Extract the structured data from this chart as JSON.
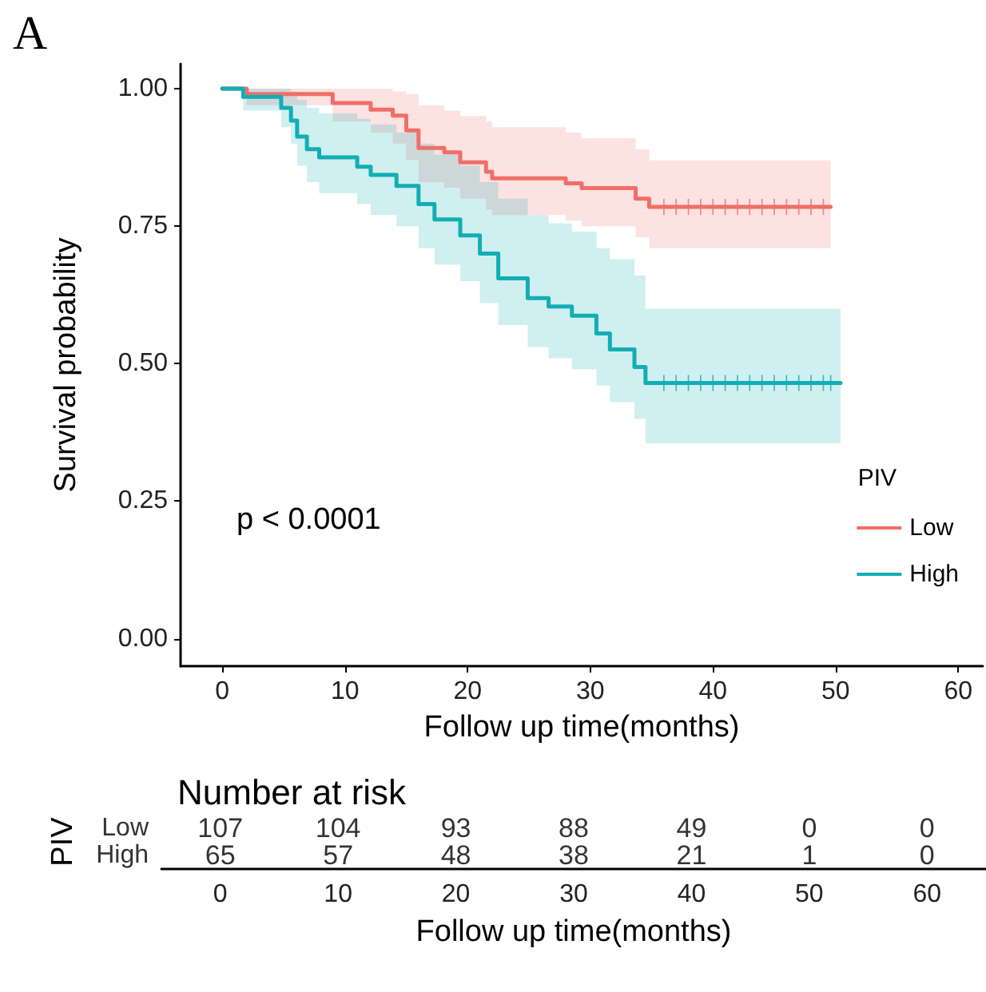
{
  "chart_data": [
    {
      "type": "step",
      "xlabel": "Follow up time(months)",
      "ylabel": "Survival probability",
      "legend_title": "PIV",
      "legend": "right",
      "grid": false,
      "annotations": [
        "A",
        "p < 0.0001"
      ],
      "xlim": [
        -3.4,
        62
      ],
      "ylim": [
        -0.05,
        1.045
      ],
      "xticks": [
        0,
        10,
        20,
        30,
        40,
        50,
        60
      ],
      "yticks": [
        {
          "value": 0,
          "label": "0.00"
        },
        {
          "value": 0.25,
          "label": "0.25"
        },
        {
          "value": 0.5,
          "label": "0.50"
        },
        {
          "value": 0.75,
          "label": "0.75"
        },
        {
          "value": 1,
          "label": "1.00"
        }
      ],
      "series": [
        {
          "name": "Low",
          "color": "#ef6f68",
          "x": [
            0,
            2,
            9,
            12.1,
            13.9,
            15,
            16,
            18.1,
            19.4,
            21.5,
            22,
            28,
            29.3,
            33.7,
            34.8,
            49.6
          ],
          "values": [
            1,
            0.99,
            0.974,
            0.962,
            0.951,
            0.924,
            0.892,
            0.884,
            0.866,
            0.849,
            0.837,
            0.828,
            0.819,
            0.8,
            0.785,
            0.785
          ],
          "upper": [
            1,
            1,
            1,
            1,
            0.995,
            0.99,
            0.97,
            0.96,
            0.95,
            0.94,
            0.93,
            0.92,
            0.91,
            0.89,
            0.87,
            0.87
          ],
          "lower": [
            1,
            0.97,
            0.94,
            0.92,
            0.9,
            0.87,
            0.83,
            0.82,
            0.8,
            0.78,
            0.77,
            0.76,
            0.75,
            0.73,
            0.71,
            0.71
          ]
        },
        {
          "name": "High",
          "color": "#12aeb4",
          "x": [
            0,
            1.7,
            4.8,
            5.6,
            6.1,
            6.9,
            7.9,
            11,
            12.1,
            14.2,
            16,
            17.3,
            19.4,
            21,
            22.5,
            24.9,
            26.6,
            28.5,
            30.5,
            31.6,
            33.6,
            34.5,
            50.4
          ],
          "values": [
            1,
            0.985,
            0.965,
            0.942,
            0.913,
            0.89,
            0.875,
            0.858,
            0.843,
            0.823,
            0.79,
            0.762,
            0.733,
            0.7,
            0.655,
            0.619,
            0.604,
            0.587,
            0.555,
            0.526,
            0.494,
            0.465,
            0.465
          ],
          "upper": [
            1,
            1,
            1,
            0.995,
            0.98,
            0.965,
            0.955,
            0.945,
            0.935,
            0.92,
            0.9,
            0.88,
            0.86,
            0.83,
            0.8,
            0.77,
            0.755,
            0.74,
            0.71,
            0.69,
            0.66,
            0.6,
            0.6
          ],
          "lower": [
            1,
            0.96,
            0.93,
            0.9,
            0.86,
            0.83,
            0.81,
            0.79,
            0.77,
            0.75,
            0.71,
            0.68,
            0.65,
            0.61,
            0.57,
            0.53,
            0.51,
            0.49,
            0.46,
            0.43,
            0.4,
            0.355,
            0.355
          ]
        },
        {
          "type": "scatter",
          "marker": "cross",
          "color": "#ef6f68",
          "x": [
            36,
            37,
            38,
            39,
            40,
            41,
            42,
            43,
            44,
            45,
            46,
            47,
            48,
            49
          ],
          "values": [
            0.785,
            0.785,
            0.785,
            0.785,
            0.785,
            0.785,
            0.785,
            0.785,
            0.785,
            0.785,
            0.785,
            0.785,
            0.785,
            0.785
          ]
        },
        {
          "type": "scatter",
          "marker": "cross",
          "color": "#12aeb4",
          "x": [
            36,
            37,
            38,
            39,
            40,
            41,
            42,
            43,
            44,
            45,
            46,
            47,
            48,
            49,
            49.6
          ],
          "values": [
            0.465,
            0.465,
            0.465,
            0.465,
            0.465,
            0.465,
            0.465,
            0.465,
            0.465,
            0.465,
            0.465,
            0.465,
            0.465,
            0.465,
            0.465
          ]
        }
      ]
    },
    {
      "type": "heatmap",
      "title": "Number at risk",
      "xlabel": "Follow up time(months)",
      "ylabel": "PIV",
      "categories": [
        "0",
        "10",
        "20",
        "30",
        "40",
        "50",
        "60"
      ],
      "y_categories": [
        "Low",
        "High"
      ],
      "cells": [
        [
          107,
          104,
          93,
          88,
          49,
          0,
          0
        ],
        [
          65,
          57,
          48,
          38,
          21,
          1,
          0
        ]
      ],
      "data_labels": true
    }
  ]
}
